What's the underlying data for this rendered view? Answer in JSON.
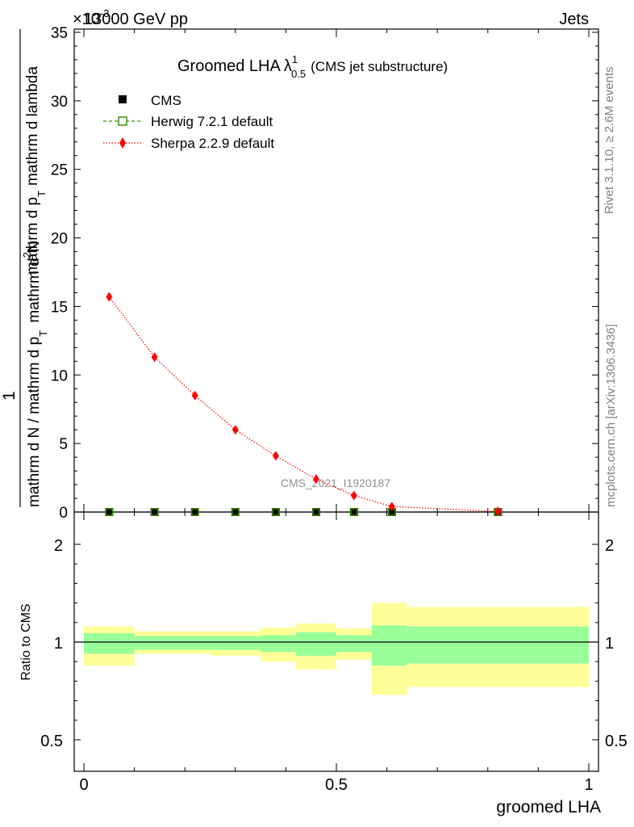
{
  "header": {
    "energy_label": "13000 GeV pp",
    "category_label": "Jets",
    "exponent_label": "×10",
    "exponent_power": "-3"
  },
  "plot": {
    "title_main": "Groomed LHA",
    "title_lambda": "λ",
    "title_sup": "1",
    "title_sub": "0.5",
    "title_note": "(CMS jet substructure)",
    "ylabel_top": "1",
    "ylabel_denominator": "mathrm d N / mathrm d p",
    "ylabel_denominator_sub": "T",
    "ylabel_numerator": "mathrm d",
    "ylabel_numerator_sup": "2",
    "ylabel_numerator_rest": "N",
    "ylabel_numerator_2": "mathrm d p",
    "ylabel_numerator_2_sub": "T",
    "ylabel_numerator_3": "mathrm d lambda",
    "watermark": "CMS_2021_I1920187",
    "side_rivet": "Rivet 3.1.10, ≥ 2.6M events",
    "side_mcplots": "mcplots.cern.ch [arXiv:1306.3436]",
    "ratio_ylabel": "Ratio to CMS",
    "xlabel": "groomed LHA"
  },
  "legend": [
    {
      "name": "CMS",
      "color": "#000000",
      "marker": "square-filled"
    },
    {
      "name": "Herwig 7.2.1 default",
      "color": "#3a8f00",
      "marker": "square-open",
      "line": "dashed"
    },
    {
      "name": "Sherpa 2.2.9 default",
      "color": "#ff0000",
      "marker": "diamond",
      "line": "dotted"
    }
  ],
  "chart_data": [
    {
      "type": "line",
      "panel": "main",
      "xlim": [
        0,
        1
      ],
      "ylim": [
        0,
        35
      ],
      "y_scale_note": "×10^-3",
      "xticks": [
        "0",
        "0.5",
        "1"
      ],
      "yticks": [
        "0",
        "5",
        "10",
        "15",
        "20",
        "25",
        "30",
        "35"
      ],
      "series": [
        {
          "name": "CMS",
          "x": [
            0.05,
            0.14,
            0.22,
            0.3,
            0.38,
            0.46,
            0.535,
            0.61,
            0.82
          ],
          "y": [
            0,
            0,
            0,
            0,
            0,
            0,
            0,
            0,
            0
          ]
        },
        {
          "name": "Herwig 7.2.1 default",
          "x": [
            0.05,
            0.14,
            0.22,
            0.3,
            0.38,
            0.46,
            0.535,
            0.61,
            0.82
          ],
          "y": [
            0,
            0,
            0,
            0,
            0,
            0,
            0,
            0,
            0
          ]
        },
        {
          "name": "Sherpa 2.2.9 default",
          "x": [
            0.05,
            0.14,
            0.22,
            0.3,
            0.38,
            0.46,
            0.535,
            0.61,
            0.82
          ],
          "y": [
            15.7,
            11.3,
            8.5,
            6.0,
            4.1,
            2.4,
            1.2,
            0.4,
            0.05
          ]
        }
      ]
    },
    {
      "type": "area",
      "panel": "ratio",
      "xlim": [
        0,
        1
      ],
      "ylim": [
        0.35,
        2.3
      ],
      "yticks": [
        "0.5",
        "1",
        "2"
      ],
      "bins": [
        {
          "x0": 0.0,
          "x1": 0.1,
          "stat_lo": 0.94,
          "stat_hi": 1.09,
          "tot_lo": 0.88,
          "tot_hi": 1.16
        },
        {
          "x0": 0.1,
          "x1": 0.25,
          "stat_lo": 0.96,
          "stat_hi": 1.06,
          "tot_lo": 0.94,
          "tot_hi": 1.11
        },
        {
          "x0": 0.25,
          "x1": 0.35,
          "stat_lo": 0.96,
          "stat_hi": 1.06,
          "tot_lo": 0.93,
          "tot_hi": 1.11
        },
        {
          "x0": 0.35,
          "x1": 0.42,
          "stat_lo": 0.95,
          "stat_hi": 1.07,
          "tot_lo": 0.9,
          "tot_hi": 1.15
        },
        {
          "x0": 0.42,
          "x1": 0.5,
          "stat_lo": 0.93,
          "stat_hi": 1.1,
          "tot_lo": 0.86,
          "tot_hi": 1.19
        },
        {
          "x0": 0.5,
          "x1": 0.57,
          "stat_lo": 0.95,
          "stat_hi": 1.07,
          "tot_lo": 0.91,
          "tot_hi": 1.14
        },
        {
          "x0": 0.57,
          "x1": 0.64,
          "stat_lo": 0.88,
          "stat_hi": 1.17,
          "tot_lo": 0.73,
          "tot_hi": 1.4
        },
        {
          "x0": 0.64,
          "x1": 1.0,
          "stat_lo": 0.89,
          "stat_hi": 1.16,
          "tot_lo": 0.77,
          "tot_hi": 1.36
        }
      ],
      "colors": {
        "stat": "#99ff99",
        "total": "#ffff99",
        "reference": "#000000"
      }
    }
  ]
}
